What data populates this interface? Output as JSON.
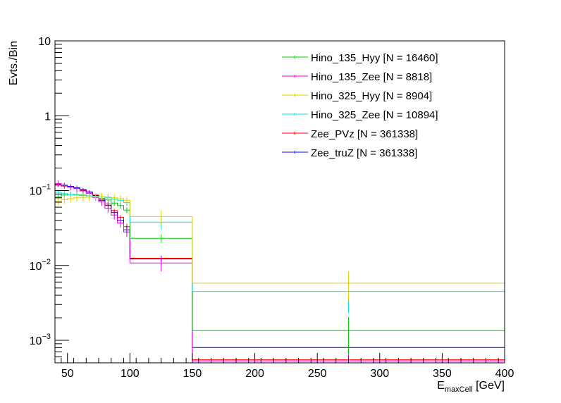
{
  "chart_data": {
    "type": "line",
    "xlabel_main": "E",
    "xlabel_sub": "maxCell",
    "xlabel_unit": " [GeV]",
    "ylabel": "Evts./Bin",
    "xlim": [
      40,
      400
    ],
    "ylim": [
      0.0005,
      10
    ],
    "yscale": "log",
    "x_ticks": [
      50,
      100,
      150,
      200,
      250,
      300,
      350,
      400
    ],
    "y_ticks": [
      {
        "value": 10,
        "label": "10"
      },
      {
        "value": 1,
        "label": "1"
      },
      {
        "value": 0.1,
        "base": "10",
        "exp": "−1"
      },
      {
        "value": 0.01,
        "base": "10",
        "exp": "−2"
      },
      {
        "value": 0.001,
        "base": "10",
        "exp": "−3"
      }
    ],
    "bin_edges": [
      40,
      45,
      50,
      55,
      60,
      65,
      70,
      75,
      80,
      85,
      90,
      95,
      100,
      150,
      400
    ],
    "series": [
      {
        "name": "Zee_PVz [N = 361338]",
        "color": "#ff0000",
        "values": [
          0.118,
          0.115,
          0.112,
          0.107,
          0.101,
          0.095,
          0.087,
          0.076,
          0.066,
          0.054,
          0.044,
          0.033,
          0.0125,
          0.00055
        ],
        "errors": [
          0.006,
          0.006,
          0.005,
          0.005,
          0.005,
          0.005,
          0.004,
          0.004,
          0.004,
          0.003,
          0.003,
          0.003,
          0.001,
          5e-05
        ]
      },
      {
        "name": "Zee_truZ [N = 361338]",
        "color": "#0000cc",
        "values": [
          0.121,
          0.118,
          0.114,
          0.109,
          0.103,
          0.096,
          0.086,
          0.074,
          0.063,
          0.051,
          0.04,
          0.03,
          0.0122,
          0.0008
        ],
        "errors": [
          0.006,
          0.006,
          0.005,
          0.005,
          0.005,
          0.005,
          0.004,
          0.004,
          0.004,
          0.003,
          0.003,
          0.003,
          0.001,
          0.0002
        ]
      },
      {
        "name": "Hino_135_Zee [N = 8818]",
        "color": "#e600e6",
        "values": [
          0.124,
          0.116,
          0.111,
          0.106,
          0.099,
          0.092,
          0.081,
          0.071,
          0.058,
          0.047,
          0.037,
          0.028,
          0.0108,
          0.00053
        ],
        "errors": [
          0.012,
          0.011,
          0.011,
          0.011,
          0.01,
          0.009,
          0.008,
          0.008,
          0.007,
          0.006,
          0.005,
          0.004,
          0.0025,
          0.0003
        ]
      },
      {
        "name": "Hino_135_Hyy [N = 16460]",
        "color": "#00cc00",
        "values": [
          0.082,
          0.087,
          0.089,
          0.088,
          0.087,
          0.085,
          0.083,
          0.079,
          0.075,
          0.068,
          0.063,
          0.055,
          0.023,
          0.00135
        ],
        "errors": [
          0.007,
          0.007,
          0.007,
          0.007,
          0.007,
          0.007,
          0.007,
          0.007,
          0.006,
          0.006,
          0.006,
          0.005,
          0.003,
          0.0007
        ]
      },
      {
        "name": "Hino_325_Zee [N = 10894]",
        "color": "#00e6e6",
        "values": [
          0.095,
          0.091,
          0.089,
          0.087,
          0.086,
          0.085,
          0.084,
          0.083,
          0.08,
          0.077,
          0.074,
          0.069,
          0.038,
          0.0045
        ],
        "errors": [
          0.008,
          0.008,
          0.008,
          0.007,
          0.007,
          0.007,
          0.007,
          0.007,
          0.007,
          0.007,
          0.007,
          0.007,
          0.008,
          0.0022
        ]
      },
      {
        "name": "Hino_325_Hyy [N = 8904]",
        "color": "#e6cc00",
        "values": [
          0.072,
          0.076,
          0.078,
          0.08,
          0.081,
          0.082,
          0.083,
          0.083,
          0.082,
          0.08,
          0.078,
          0.074,
          0.045,
          0.0058
        ],
        "errors": [
          0.009,
          0.009,
          0.009,
          0.009,
          0.009,
          0.009,
          0.009,
          0.009,
          0.009,
          0.009,
          0.009,
          0.009,
          0.009,
          0.0025
        ]
      }
    ],
    "legend": {
      "placement": "top-right",
      "entries": [
        {
          "name": "Hino_135_Hyy [N = 16460]",
          "color": "#00cc00"
        },
        {
          "name": "Hino_135_Zee [N = 8818]",
          "color": "#e600e6"
        },
        {
          "name": "Hino_325_Hyy [N = 8904]",
          "color": "#e6cc00"
        },
        {
          "name": "Hino_325_Zee [N = 10894]",
          "color": "#00e6e6"
        },
        {
          "name": "Zee_PVz [N = 361338]",
          "color": "#ff0000"
        },
        {
          "name": "Zee_truZ [N = 361338]",
          "color": "#0000cc"
        }
      ]
    },
    "grid": false
  }
}
